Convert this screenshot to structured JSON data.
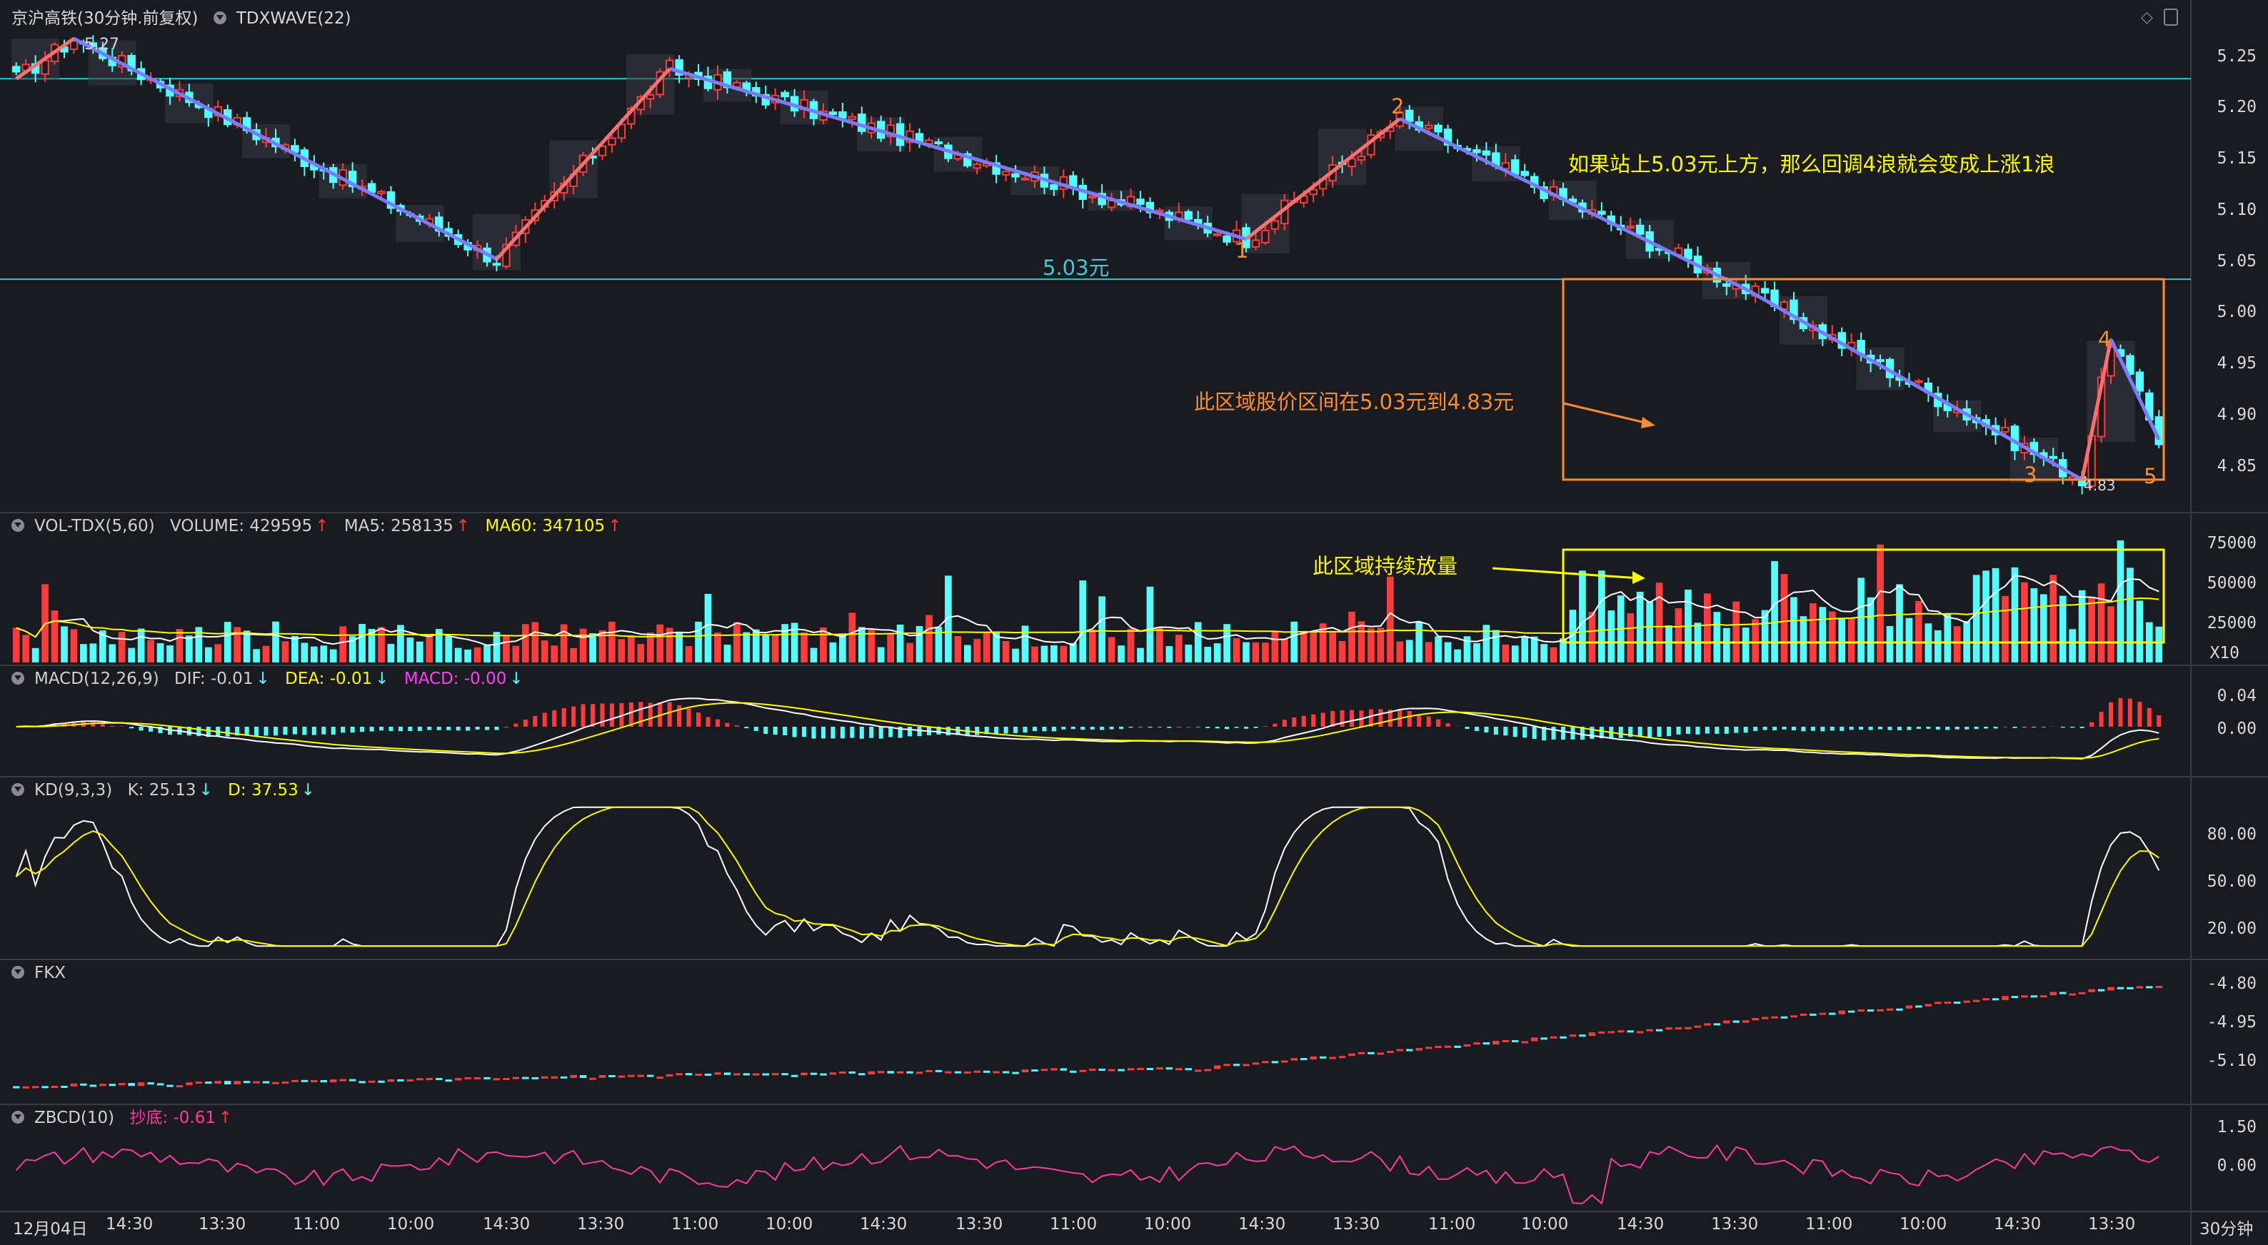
{
  "main_header": {
    "title": "京沪高铁(30分钟.前复权)",
    "indicator": "TDXWAVE(22)"
  },
  "vol_header": {
    "name": "VOL-TDX(5,60)",
    "volume": "VOLUME: 429595",
    "ma5": "MA5: 258135",
    "ma60": "MA60: 347105"
  },
  "macd_header": {
    "name": "MACD(12,26,9)",
    "dif": "DIF: -0.01",
    "dea": "DEA: -0.01",
    "macd": "MACD: -0.00"
  },
  "kd_header": {
    "name": "KD(9,3,3)",
    "k": "K: 25.13",
    "d": "D: 37.53"
  },
  "fkx_header": {
    "name": "FKX"
  },
  "zbcd_header": {
    "name": "ZBCD(10)",
    "value": "抄底: -0.61"
  },
  "annotations": {
    "price_line": "5.03元",
    "hint": "如果站上5.03元上方，那么回调4浪就会变成上涨1浪",
    "range": "此区域股价区间在5.03元到4.83元",
    "volume": "此区域持续放量",
    "high": "5.27",
    "low": "4.83",
    "wave1": "1",
    "wave2": "2",
    "wave3": "3",
    "wave4": "4",
    "wave5": "5"
  },
  "axes": {
    "price_ticks": [
      "5.25",
      "5.20",
      "5.15",
      "5.10",
      "5.05",
      "5.00",
      "4.95",
      "4.90",
      "4.85"
    ],
    "vol_ticks": [
      "75000",
      "50000",
      "25000"
    ],
    "vol_unit": "X10",
    "macd_ticks": [
      "0.04",
      "0.00"
    ],
    "kd_ticks": [
      "80.00",
      "50.00",
      "20.00"
    ],
    "fkx_ticks": [
      "-4.80",
      "-4.95",
      "-5.10"
    ],
    "zbcd_ticks": [
      "1.50",
      "0.00"
    ],
    "time_labels": [
      "12月04日",
      "14:30",
      "13:30",
      "11:00",
      "10:00",
      "14:30",
      "13:30",
      "11:00",
      "10:00",
      "14:30",
      "13:30",
      "11:00",
      "10:00",
      "14:30",
      "13:30",
      "11:00",
      "10:00",
      "14:30",
      "13:30",
      "11:00",
      "10:00",
      "14:30",
      "13:30"
    ],
    "period": "30分钟"
  },
  "colors": {
    "up": "#ff3b3b",
    "down": "#54ffff",
    "wave_down": "#7b7bff",
    "wave_up": "#ff7070",
    "ma_yellow": "#ffff00",
    "annotation_orange": "#ff8c32",
    "annotation_yellow": "#ffff00",
    "pink": "#ff3aa3"
  },
  "chart_data": {
    "type": "candlestick",
    "period": "30分钟",
    "bars": 224,
    "price_range": [
      4.81,
      5.28
    ],
    "grid": false,
    "wave_points": [
      {
        "bar": 0,
        "price": 5.23
      },
      {
        "bar": 6,
        "price": 5.27
      },
      {
        "bar": 50,
        "price": 5.05
      },
      {
        "bar": 68,
        "price": 5.24
      },
      {
        "bar": 128,
        "price": 5.07
      },
      {
        "bar": 144,
        "price": 5.19
      },
      {
        "bar": 180,
        "price": 5.02
      },
      {
        "bar": 215,
        "price": 4.83
      },
      {
        "bar": 218,
        "price": 4.97
      },
      {
        "bar": 223,
        "price": 4.87
      }
    ],
    "horizontal_lines": [
      5.23,
      5.03
    ],
    "range_box": {
      "bar_from": 162,
      "bar_to": 223,
      "price_from": 4.83,
      "price_to": 5.03
    },
    "volume_range": [
      0,
      80000
    ],
    "volume_box": {
      "bar_from": 162,
      "bar_to": 223
    },
    "kd_range": [
      0,
      100
    ],
    "fkx_range": [
      -5.18,
      -4.78
    ],
    "zbcd_range": [
      -1.2,
      2.0
    ]
  }
}
